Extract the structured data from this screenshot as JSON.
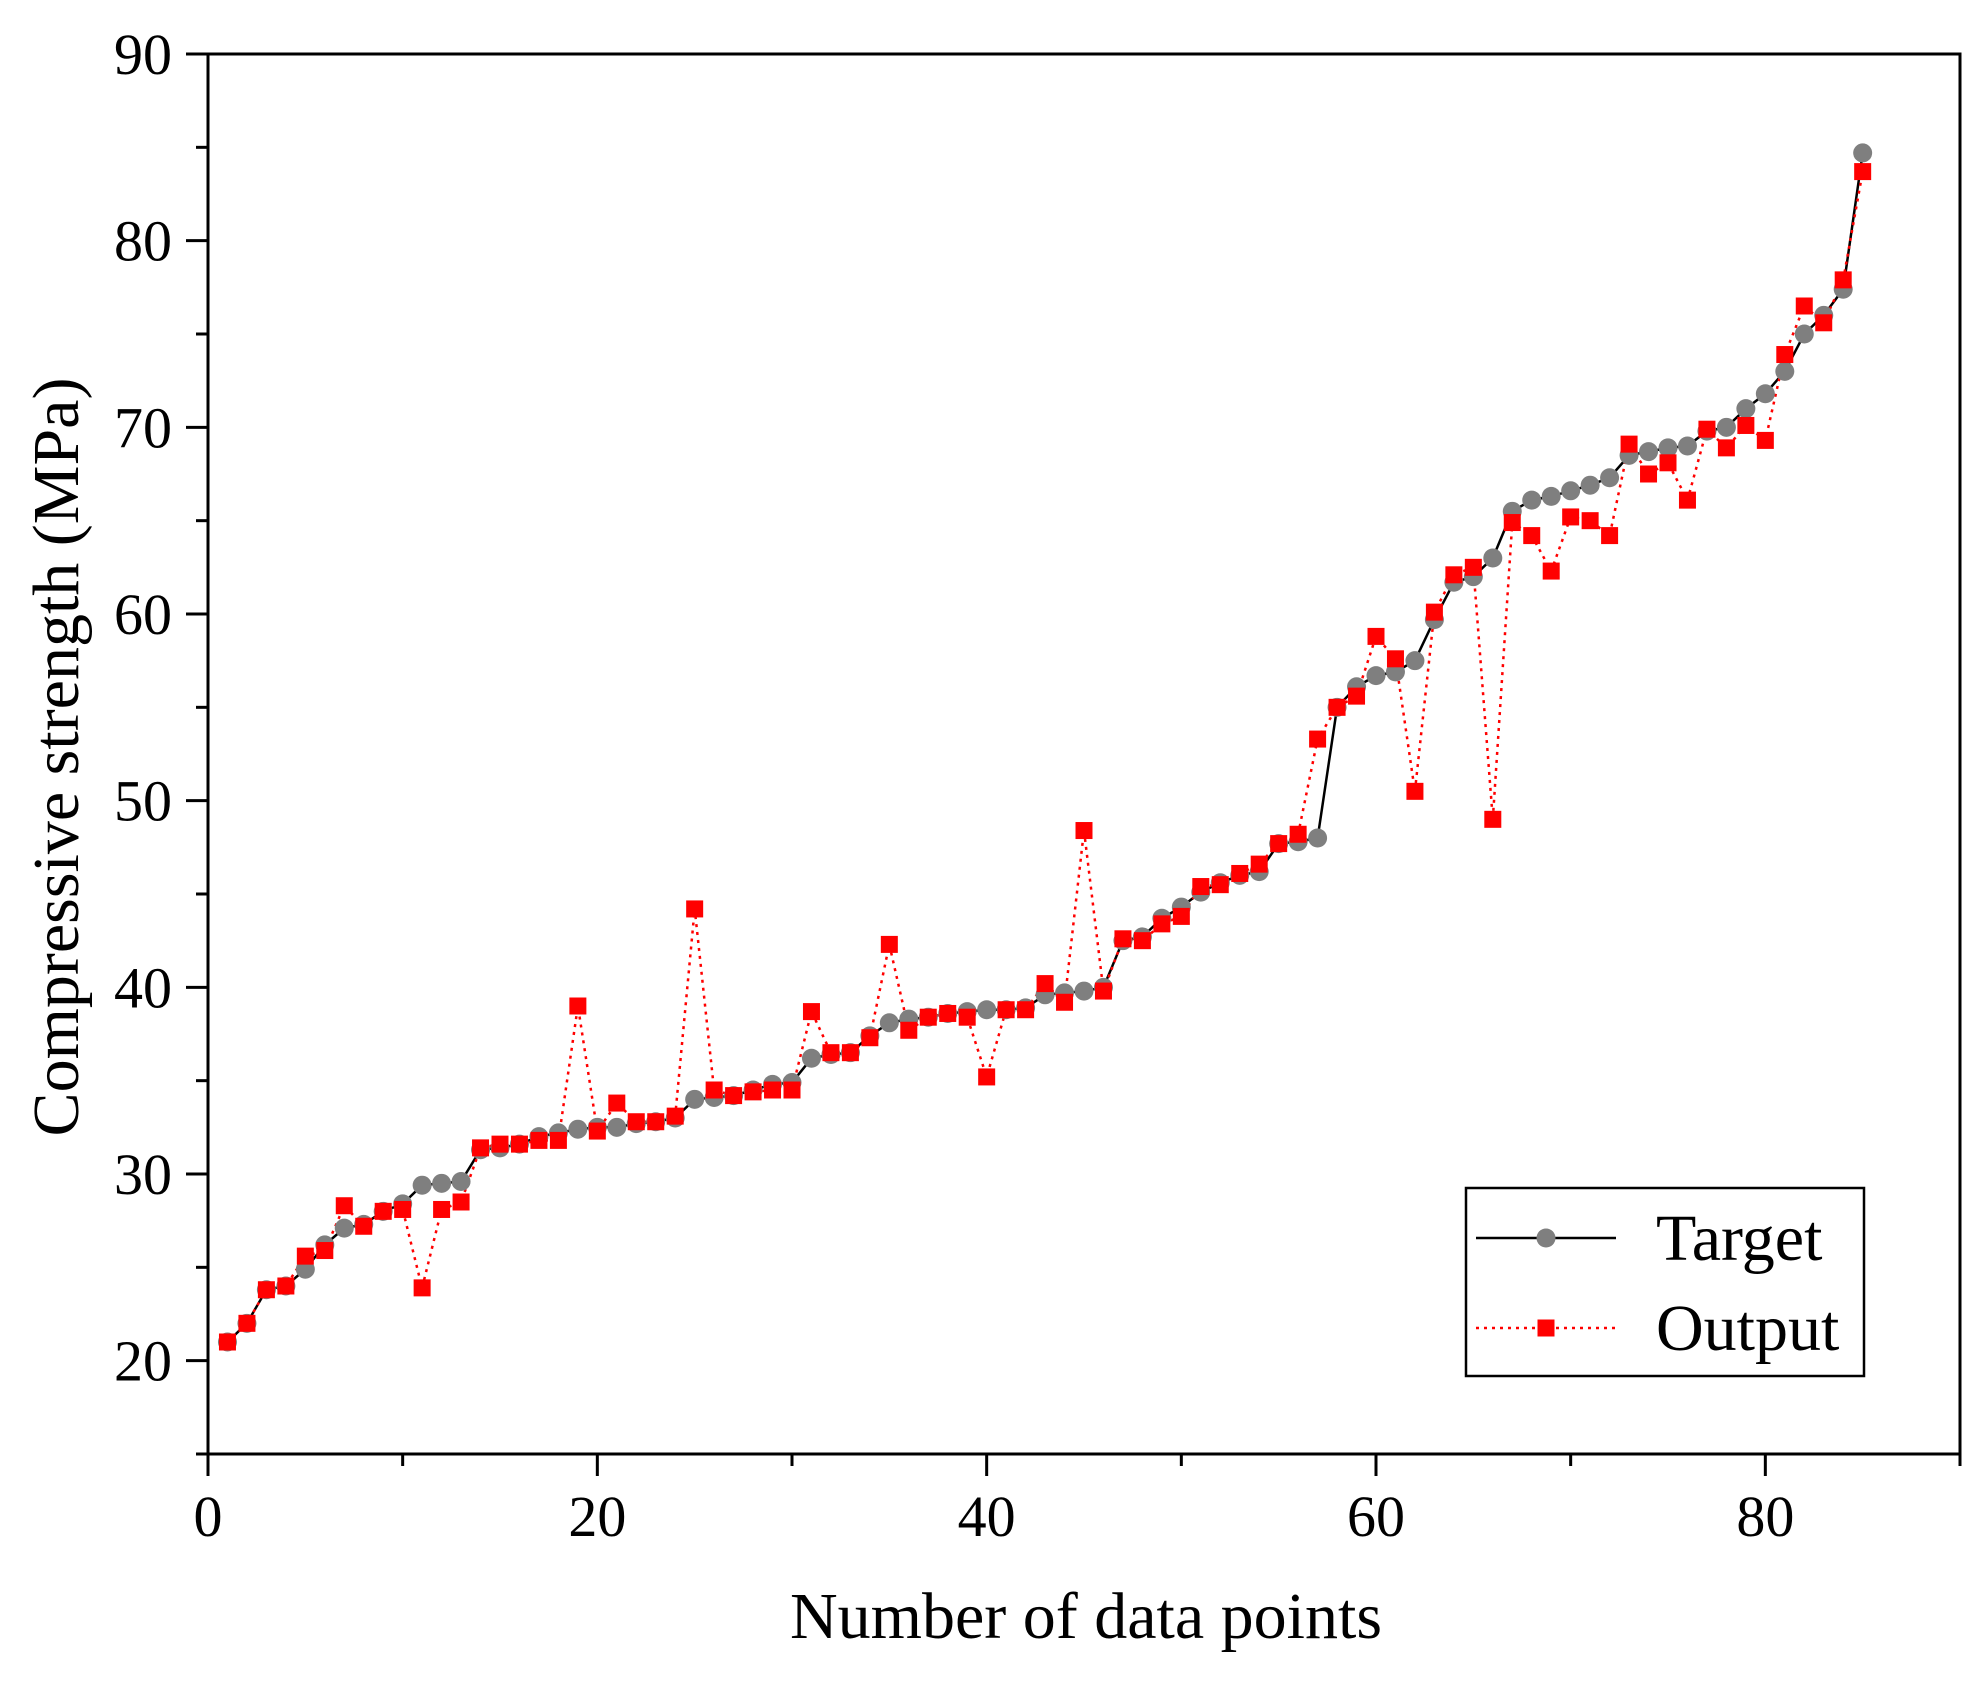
{
  "chart_data": {
    "type": "line",
    "xlabel": "Number of data points",
    "ylabel": "Compressive strength (MPa)",
    "xlim": [
      0,
      90
    ],
    "ylim": [
      15,
      90
    ],
    "xticks": [
      0,
      20,
      40,
      60,
      80
    ],
    "yticks": [
      20,
      30,
      40,
      50,
      60,
      70,
      80,
      90
    ],
    "grid": false,
    "legend_position": "bottom-right",
    "x": [
      1,
      2,
      3,
      4,
      5,
      6,
      7,
      8,
      9,
      10,
      11,
      12,
      13,
      14,
      15,
      16,
      17,
      18,
      19,
      20,
      21,
      22,
      23,
      24,
      25,
      26,
      27,
      28,
      29,
      30,
      31,
      32,
      33,
      34,
      35,
      36,
      37,
      38,
      39,
      40,
      41,
      42,
      43,
      44,
      45,
      46,
      47,
      48,
      49,
      50,
      51,
      52,
      53,
      54,
      55,
      56,
      57,
      58,
      59,
      60,
      61,
      62,
      63,
      64,
      65,
      66,
      67,
      68,
      69,
      70,
      71,
      72,
      73,
      74,
      75,
      76,
      77,
      78,
      79,
      80,
      81,
      82,
      83,
      84,
      85
    ],
    "series": [
      {
        "name": "Target",
        "color": "#7f7f7f",
        "line_color": "#000000",
        "line_style": "solid",
        "marker": "circle",
        "values": [
          21.0,
          22.0,
          23.8,
          24.0,
          24.9,
          26.2,
          27.1,
          27.3,
          28.0,
          28.4,
          29.4,
          29.5,
          29.6,
          31.3,
          31.4,
          31.6,
          32.0,
          32.2,
          32.4,
          32.5,
          32.5,
          32.7,
          32.8,
          33.0,
          34.0,
          34.1,
          34.2,
          34.5,
          34.8,
          34.9,
          36.2,
          36.4,
          36.5,
          37.4,
          38.1,
          38.3,
          38.4,
          38.6,
          38.7,
          38.8,
          38.8,
          38.9,
          39.6,
          39.7,
          39.8,
          40.0,
          42.5,
          42.7,
          43.7,
          44.3,
          45.1,
          45.6,
          46.0,
          46.2,
          47.7,
          47.8,
          48.0,
          55.0,
          56.1,
          56.7,
          56.9,
          57.5,
          59.7,
          61.7,
          62.0,
          63.0,
          65.5,
          66.1,
          66.3,
          66.6,
          66.9,
          67.3,
          68.5,
          68.7,
          68.9,
          69.0,
          69.8,
          70.0,
          71.0,
          71.8,
          73.0,
          75.0,
          76.0,
          77.4,
          84.7
        ]
      },
      {
        "name": "Output",
        "color": "#ff0000",
        "line_color": "#ff0000",
        "line_style": "dotted",
        "marker": "square",
        "values": [
          21.0,
          22.0,
          23.8,
          24.0,
          25.6,
          25.9,
          28.3,
          27.2,
          28.0,
          28.1,
          23.9,
          28.1,
          28.5,
          31.4,
          31.6,
          31.6,
          31.8,
          31.8,
          39.0,
          32.3,
          33.8,
          32.8,
          32.8,
          33.1,
          44.2,
          34.5,
          34.2,
          34.4,
          34.5,
          34.5,
          38.7,
          36.5,
          36.5,
          37.3,
          42.3,
          37.7,
          38.4,
          38.6,
          38.4,
          35.2,
          38.8,
          38.8,
          40.2,
          39.2,
          48.4,
          39.8,
          42.6,
          42.5,
          43.4,
          43.8,
          45.4,
          45.5,
          46.1,
          46.6,
          47.7,
          48.2,
          53.3,
          55.0,
          55.6,
          58.8,
          57.6,
          50.5,
          60.1,
          62.1,
          62.5,
          49.0,
          64.9,
          64.2,
          62.3,
          65.2,
          65.0,
          64.2,
          69.1,
          67.5,
          68.1,
          66.1,
          69.9,
          68.9,
          70.1,
          69.3,
          73.9,
          76.5,
          75.6,
          77.9,
          83.7
        ]
      }
    ]
  }
}
